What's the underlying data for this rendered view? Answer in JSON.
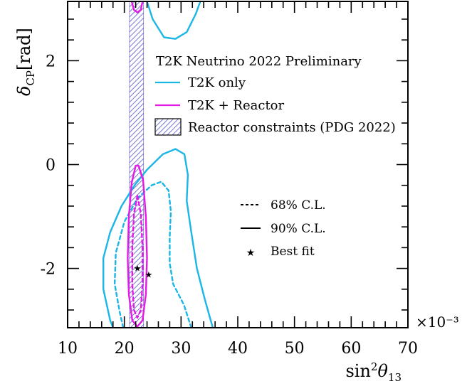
{
  "chart_data": {
    "type": "line",
    "title": "T2K Neutrino 2022 Preliminary",
    "xlabel": "sin²θ₁₃",
    "ylabel": "δCP [rad]",
    "x_multiplier": "×10⁻³",
    "xlim": [
      10,
      70
    ],
    "ylim": [
      -3.1416,
      3.1416
    ],
    "x_ticks": [
      "10",
      "20",
      "30",
      "40",
      "50",
      "60",
      "70"
    ],
    "y_ticks": [
      "-2",
      "0",
      "2"
    ],
    "grid": false,
    "colors": {
      "t2k_only": "#1ab6e6",
      "t2k_reactor": "#e61ae6",
      "reactor_band": "#5555cc"
    },
    "legend": {
      "placement": "top-right",
      "title": "T2K Neutrino 2022 Preliminary",
      "entries": [
        "T2K only",
        "T2K + Reactor",
        "Reactor constraints (PDG 2022)"
      ]
    },
    "style_legend": {
      "placement": "middle-right",
      "entries": [
        "68% C.L.",
        "90% C.L.",
        "Best fit"
      ]
    },
    "reactor_band": {
      "name": "Reactor constraints (PDG 2022)",
      "x_range": [
        20.9,
        23.4
      ]
    },
    "series": [
      {
        "name": "T2K only",
        "level": "90% C.L.",
        "line": "solid",
        "color": "#1ab6e6",
        "points": [
          [
            35.6,
            -3.1416
          ],
          [
            34.2,
            -2.6
          ],
          [
            32.8,
            -2.0
          ],
          [
            31.8,
            -1.3
          ],
          [
            31.0,
            -0.7
          ],
          [
            31.2,
            -0.2
          ],
          [
            30.6,
            0.2
          ],
          [
            29.0,
            0.3
          ],
          [
            26.8,
            0.2
          ],
          [
            24.0,
            -0.1
          ],
          [
            21.8,
            -0.4
          ],
          [
            19.5,
            -0.8
          ],
          [
            17.5,
            -1.3
          ],
          [
            16.3,
            -1.8
          ],
          [
            16.3,
            -2.4
          ],
          [
            17.5,
            -3.0
          ],
          [
            18.0,
            -3.1416
          ]
        ]
      },
      {
        "name": "T2K only",
        "level": "90% C.L. (upper lobe)",
        "line": "solid",
        "color": "#1ab6e6",
        "points": [
          [
            24.0,
            3.1416
          ],
          [
            25.0,
            2.8
          ],
          [
            27.0,
            2.45
          ],
          [
            29.0,
            2.42
          ],
          [
            31.0,
            2.55
          ],
          [
            32.6,
            2.9
          ],
          [
            33.4,
            3.1416
          ]
        ]
      },
      {
        "name": "T2K only",
        "level": "68% C.L.",
        "line": "dashed",
        "color": "#1ab6e6",
        "points": [
          [
            31.8,
            -3.1416
          ],
          [
            30.5,
            -2.7
          ],
          [
            28.6,
            -2.3
          ],
          [
            28.0,
            -1.9
          ],
          [
            28.0,
            -1.4
          ],
          [
            28.2,
            -0.9
          ],
          [
            27.8,
            -0.5
          ],
          [
            26.5,
            -0.33
          ],
          [
            24.8,
            -0.4
          ],
          [
            22.3,
            -0.65
          ],
          [
            20.0,
            -1.1
          ],
          [
            18.5,
            -1.7
          ],
          [
            18.3,
            -2.3
          ],
          [
            19.2,
            -2.85
          ],
          [
            19.8,
            -3.1416
          ]
        ]
      },
      {
        "name": "T2K + Reactor",
        "level": "90% C.L.",
        "line": "solid",
        "color": "#e61ae6",
        "points": [
          [
            22.5,
            -0.02
          ],
          [
            23.3,
            -0.3
          ],
          [
            23.8,
            -1.0
          ],
          [
            24.0,
            -1.8
          ],
          [
            23.8,
            -2.5
          ],
          [
            23.2,
            -3.0
          ],
          [
            22.3,
            -3.12
          ],
          [
            21.4,
            -3.0
          ],
          [
            20.8,
            -2.5
          ],
          [
            20.6,
            -1.8
          ],
          [
            20.8,
            -1.0
          ],
          [
            21.3,
            -0.35
          ],
          [
            22.0,
            -0.02
          ],
          [
            22.5,
            -0.02
          ]
        ]
      },
      {
        "name": "T2K + Reactor",
        "level": "90% C.L. (upper lobe)",
        "line": "solid",
        "color": "#e61ae6",
        "points": [
          [
            21.3,
            3.1416
          ],
          [
            21.7,
            2.98
          ],
          [
            22.3,
            2.93
          ],
          [
            22.9,
            2.98
          ],
          [
            23.2,
            3.1416
          ]
        ]
      },
      {
        "name": "T2K + Reactor",
        "level": "68% C.L.",
        "line": "dashed",
        "color": "#e61ae6",
        "points": [
          [
            22.3,
            -0.6
          ],
          [
            22.9,
            -0.95
          ],
          [
            23.2,
            -1.6
          ],
          [
            23.2,
            -2.3
          ],
          [
            22.9,
            -2.8
          ],
          [
            22.3,
            -2.95
          ],
          [
            21.7,
            -2.8
          ],
          [
            21.4,
            -2.3
          ],
          [
            21.4,
            -1.6
          ],
          [
            21.7,
            -0.95
          ],
          [
            22.3,
            -0.6
          ]
        ]
      }
    ],
    "best_fit": [
      {
        "name": "T2K only",
        "x": 24.3,
        "y": -2.12,
        "color": "#1ab6e6"
      },
      {
        "name": "T2K + Reactor",
        "x": 22.3,
        "y": -2.0,
        "color": "#e61ae6"
      }
    ]
  }
}
